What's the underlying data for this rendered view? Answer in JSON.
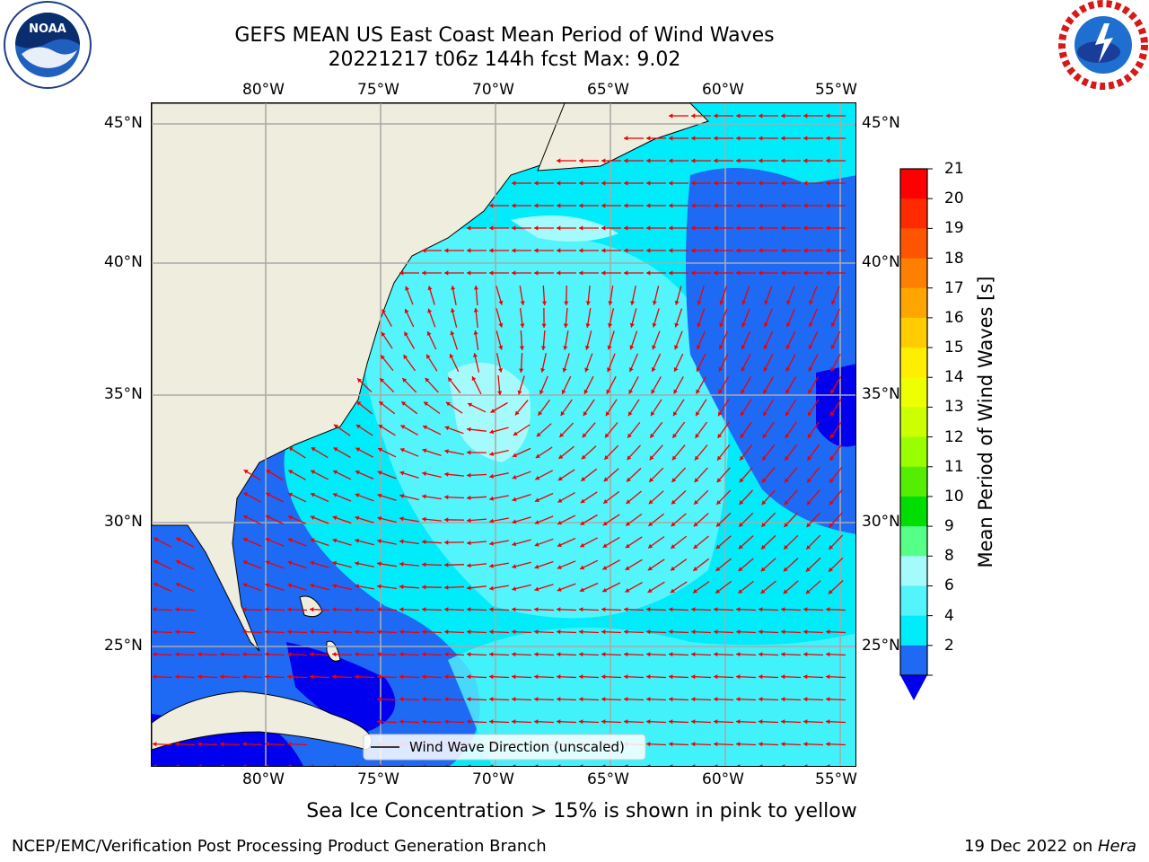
{
  "header": {
    "title_line1": "GEFS MEAN US East Coast Mean Period of Wind Waves",
    "title_line2": "20221217 t06z 144h fcst   Max: 9.02"
  },
  "logos": {
    "left": {
      "name": "noaa-logo",
      "text": "NOAA"
    },
    "right": {
      "name": "nws-logo",
      "text": "NATIONAL WEATHER SERVICE"
    }
  },
  "map": {
    "lon_labels_top": [
      "80°W",
      "75°W",
      "70°W",
      "65°W",
      "60°W",
      "55°W"
    ],
    "lon_labels_bottom": [
      "80°W",
      "75°W",
      "70°W",
      "65°W",
      "60°W",
      "55°W"
    ],
    "lat_labels_left": [
      "45°N",
      "40°N",
      "35°N",
      "30°N",
      "25°N"
    ],
    "lat_labels_right": [
      "45°N",
      "40°N",
      "35°N",
      "30°N",
      "25°N"
    ],
    "legend_label": "Wind Wave Direction (unscaled)",
    "colors": {
      "land": "#efedde",
      "band_2_4": "#1e6af5",
      "band_4_6": "#00ecfb",
      "band_6_8": "#53f4fb",
      "band_8_9": "#a5fbfb",
      "below_2": "#0000ee",
      "arrow": "#ee0000",
      "grid": "#aaaaaa"
    }
  },
  "colorbar": {
    "label": "Mean Period of Wind Waves [s]",
    "ticks": [
      "21",
      "20",
      "19",
      "18",
      "17",
      "16",
      "15",
      "14",
      "13",
      "12",
      "11",
      "10",
      "9",
      "8",
      "6",
      "4",
      "2"
    ],
    "colors": [
      "#ff0000",
      "#ff2a00",
      "#ff5500",
      "#ff7f00",
      "#ffa500",
      "#ffcc00",
      "#ffee00",
      "#eeff00",
      "#ccff00",
      "#99ff00",
      "#55ee00",
      "#00dd00",
      "#55ff88",
      "#a5fbfb",
      "#53f4fb",
      "#00ecfb",
      "#1e6af5"
    ],
    "extend_color": "#0000ee"
  },
  "footer": {
    "note": "Sea Ice Concentration > 15% is shown in pink to yellow",
    "left": "NCEP/EMC/Verification Post Processing Product Generation Branch",
    "right_prefix": "19 Dec 2022 on ",
    "right_host": "Hera"
  }
}
